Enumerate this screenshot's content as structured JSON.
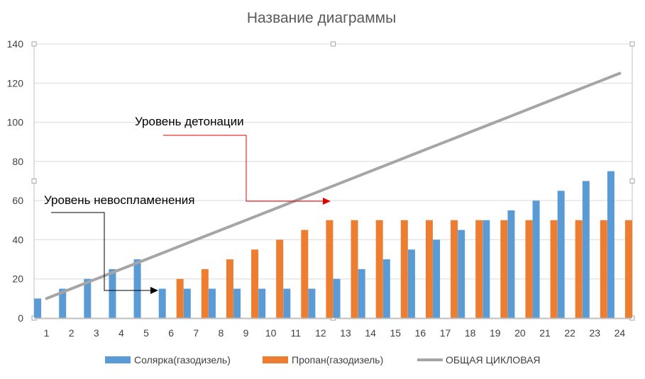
{
  "chart_data": {
    "type": "bar",
    "title": "Название диаграммы",
    "categories": [
      "1",
      "2",
      "3",
      "4",
      "5",
      "6",
      "7",
      "8",
      "9",
      "10",
      "11",
      "12",
      "13",
      "14",
      "15",
      "16",
      "17",
      "18",
      "19",
      "20",
      "21",
      "22",
      "23",
      "24"
    ],
    "series": [
      {
        "name": "Солярка(газодизель)",
        "kind": "bar",
        "color": "#5B9BD5",
        "values": [
          10,
          15,
          20,
          25,
          30,
          15,
          15,
          15,
          15,
          15,
          15,
          15,
          20,
          25,
          30,
          35,
          40,
          45,
          50,
          55,
          60,
          65,
          70,
          75
        ]
      },
      {
        "name": "Пропан(газодизель)",
        "kind": "bar",
        "color": "#ED7D31",
        "values": [
          0,
          0,
          0,
          0,
          0,
          20,
          25,
          30,
          35,
          40,
          45,
          50,
          50,
          50,
          50,
          50,
          50,
          50,
          50,
          50,
          50,
          50,
          50,
          50
        ]
      },
      {
        "name": "ОБЩАЯ ЦИКЛОВАЯ",
        "kind": "line",
        "color": "#A5A5A5",
        "values": [
          10,
          15,
          20,
          25,
          30,
          35,
          40,
          45,
          50,
          55,
          60,
          65,
          70,
          75,
          80,
          85,
          90,
          95,
          100,
          105,
          110,
          115,
          120,
          125
        ]
      }
    ],
    "ylim": [
      0,
      140
    ],
    "yticks": [
      "0",
      "20",
      "40",
      "60",
      "80",
      "100",
      "120",
      "140"
    ],
    "grid": true,
    "legend": "bottom",
    "annotations": [
      {
        "text": "Уровень детонации",
        "arrow_color": "#E00000"
      },
      {
        "text": "Уровень невоспламенения",
        "arrow_color": "#000000"
      }
    ]
  }
}
